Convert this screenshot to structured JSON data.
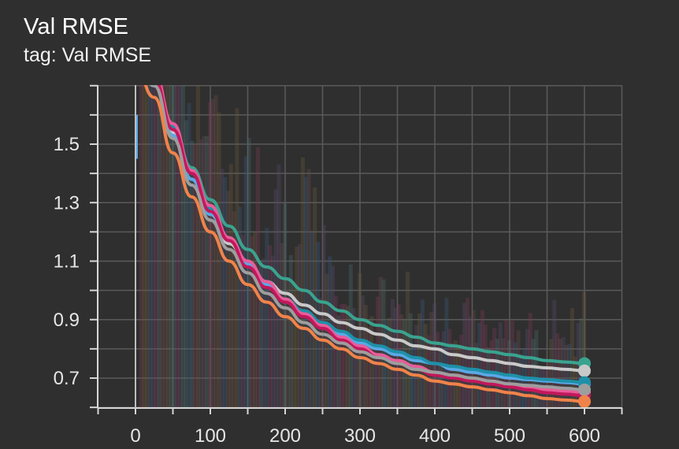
{
  "card": {
    "title": "Val RMSE",
    "subtitle": "tag: Val RMSE"
  },
  "chart_data": {
    "type": "line",
    "title": "Val RMSE",
    "subtitle": "tag: Val RMSE",
    "xlabel": "",
    "ylabel": "",
    "xlim": [
      -100,
      650
    ],
    "ylim": [
      0.6,
      1.8
    ],
    "x_ticks": [
      0,
      100,
      200,
      300,
      400,
      500,
      600
    ],
    "y_ticks": [
      0.7,
      0.9,
      1.1,
      1.3,
      1.5
    ],
    "y_tick_labels": [
      "0.7",
      "0.9",
      "1.1",
      "1.3",
      "1.5"
    ],
    "x_tick_labels": [
      "0",
      "100",
      "200",
      "300",
      "400",
      "500",
      "600"
    ],
    "grid": true,
    "legend": "none",
    "background": "#2f2f2f",
    "x": [
      0,
      25,
      50,
      75,
      100,
      125,
      150,
      175,
      200,
      225,
      250,
      275,
      300,
      325,
      350,
      375,
      400,
      425,
      450,
      475,
      500,
      525,
      550,
      575,
      600
    ],
    "series": [
      {
        "color": "#3aa38f",
        "values": [
          1.78,
          1.72,
          1.56,
          1.42,
          1.31,
          1.22,
          1.14,
          1.08,
          1.04,
          1.0,
          0.96,
          0.93,
          0.9,
          0.88,
          0.86,
          0.84,
          0.82,
          0.81,
          0.8,
          0.79,
          0.78,
          0.77,
          0.76,
          0.755,
          0.75
        ]
      },
      {
        "color": "#c9c9c9",
        "values": [
          1.78,
          1.72,
          1.54,
          1.38,
          1.26,
          1.16,
          1.09,
          1.03,
          0.99,
          0.95,
          0.92,
          0.89,
          0.87,
          0.85,
          0.83,
          0.81,
          0.8,
          0.78,
          0.77,
          0.76,
          0.75,
          0.74,
          0.735,
          0.73,
          0.725
        ]
      },
      {
        "color": "#5aa9e6",
        "values": [
          1.78,
          1.7,
          1.53,
          1.38,
          1.26,
          1.17,
          1.09,
          1.02,
          0.96,
          0.92,
          0.88,
          0.85,
          0.82,
          0.8,
          0.78,
          0.76,
          0.75,
          0.73,
          0.72,
          0.71,
          0.7,
          0.695,
          0.69,
          0.685,
          0.68
        ]
      },
      {
        "color": "#1e90a8",
        "values": [
          1.79,
          1.73,
          1.56,
          1.41,
          1.28,
          1.18,
          1.1,
          1.03,
          0.97,
          0.93,
          0.89,
          0.86,
          0.83,
          0.81,
          0.79,
          0.77,
          0.75,
          0.74,
          0.73,
          0.72,
          0.71,
          0.7,
          0.695,
          0.69,
          0.685
        ]
      },
      {
        "color": "#e85d9a",
        "values": [
          1.79,
          1.74,
          1.57,
          1.41,
          1.29,
          1.18,
          1.1,
          1.03,
          0.97,
          0.92,
          0.88,
          0.84,
          0.81,
          0.78,
          0.76,
          0.74,
          0.72,
          0.71,
          0.7,
          0.69,
          0.68,
          0.67,
          0.66,
          0.655,
          0.65
        ]
      },
      {
        "color": "#c2185b",
        "values": [
          1.78,
          1.72,
          1.55,
          1.4,
          1.27,
          1.17,
          1.08,
          1.01,
          0.96,
          0.91,
          0.87,
          0.83,
          0.8,
          0.77,
          0.75,
          0.73,
          0.71,
          0.7,
          0.69,
          0.68,
          0.67,
          0.66,
          0.65,
          0.645,
          0.64
        ]
      },
      {
        "color": "#9e9e9e",
        "values": [
          1.78,
          1.7,
          1.52,
          1.36,
          1.24,
          1.14,
          1.06,
          0.99,
          0.94,
          0.89,
          0.85,
          0.82,
          0.79,
          0.77,
          0.75,
          0.73,
          0.72,
          0.71,
          0.7,
          0.69,
          0.68,
          0.675,
          0.67,
          0.665,
          0.66
        ]
      },
      {
        "color": "#f0834a",
        "values": [
          1.76,
          1.66,
          1.47,
          1.32,
          1.2,
          1.1,
          1.02,
          0.96,
          0.91,
          0.87,
          0.83,
          0.8,
          0.77,
          0.75,
          0.73,
          0.71,
          0.69,
          0.68,
          0.67,
          0.66,
          0.65,
          0.64,
          0.63,
          0.625,
          0.62
        ]
      }
    ]
  }
}
